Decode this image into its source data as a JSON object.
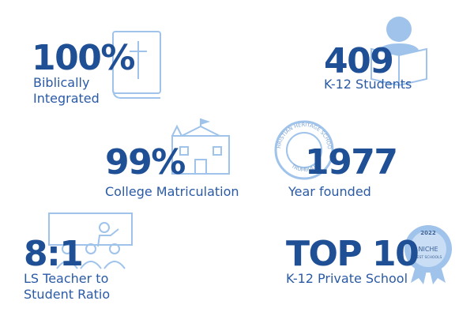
{
  "stats": [
    {
      "value": "100%",
      "label": [
        "Biblically",
        "Integrated"
      ]
    },
    {
      "value": "409",
      "label": [
        "K-12 Students"
      ]
    },
    {
      "value": "99%",
      "label": [
        "College Matriculation"
      ]
    },
    {
      "value": "1977",
      "label": [
        "Year founded"
      ]
    },
    {
      "value": "8:1",
      "label": [
        "LS Teacher to",
        "Student Ratio"
      ]
    },
    {
      "value": "TOP 10",
      "label": [
        "K-12 Private School"
      ]
    }
  ],
  "seal": {
    "top": "CHRISTIAN HERITAGE SCHOOL",
    "bottom": "TRUMBULL"
  },
  "badge": {
    "year": "2022",
    "name": "NICHE",
    "caption": "BEST SCHOOLS"
  }
}
